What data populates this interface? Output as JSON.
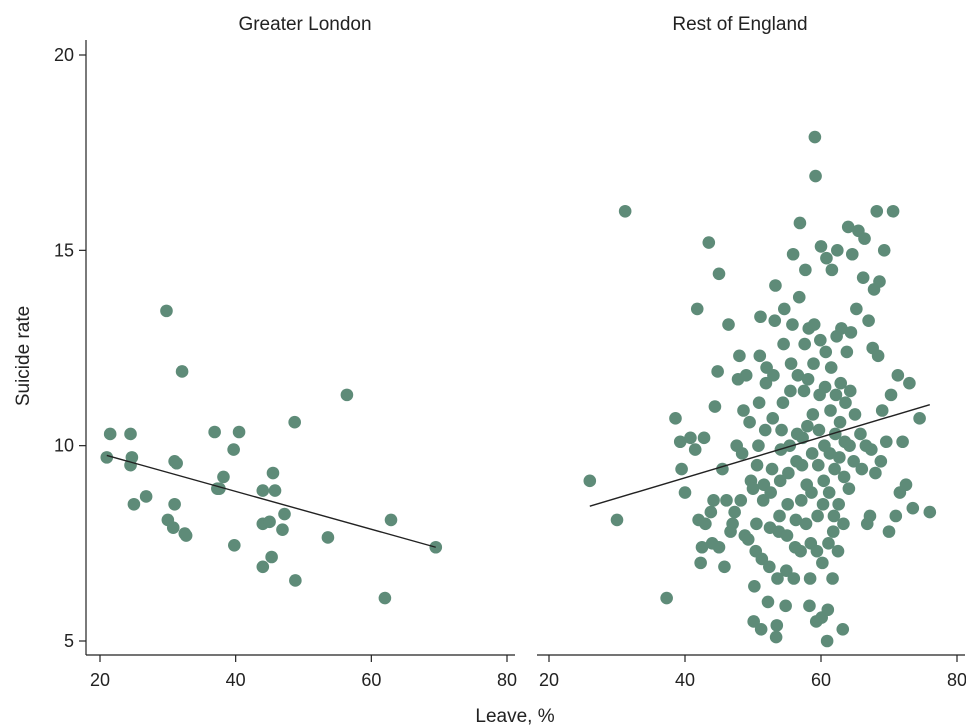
{
  "chart_data": {
    "type": "scatter",
    "xlabel": "Leave, %",
    "ylabel": "Suicide rate",
    "marker_color": "#5e8b78",
    "line_color": "#222222",
    "panels": [
      {
        "title": "Greater London",
        "xlim": [
          20,
          80
        ],
        "ylim": [
          5,
          20
        ],
        "xticks": [
          "20",
          "40",
          "60",
          "80"
        ],
        "yticks": [
          "5",
          "10",
          "15",
          "20"
        ],
        "trend": {
          "x": [
            21,
            69.5
          ],
          "y": [
            9.75,
            7.4
          ]
        },
        "points": [
          [
            21,
            9.7
          ],
          [
            21.5,
            10.3
          ],
          [
            24.5,
            10.3
          ],
          [
            24.5,
            9.5
          ],
          [
            24.7,
            9.7
          ],
          [
            25,
            8.5
          ],
          [
            26.8,
            8.7
          ],
          [
            29.8,
            13.45
          ],
          [
            30,
            8.1
          ],
          [
            30.8,
            7.9
          ],
          [
            31,
            8.5
          ],
          [
            31,
            9.6
          ],
          [
            31.3,
            9.55
          ],
          [
            32.1,
            11.9
          ],
          [
            32.5,
            7.75
          ],
          [
            32.7,
            7.7
          ],
          [
            36.9,
            10.35
          ],
          [
            37.3,
            8.9
          ],
          [
            37.6,
            8.9
          ],
          [
            38.2,
            9.2
          ],
          [
            39.7,
            9.9
          ],
          [
            39.8,
            7.45
          ],
          [
            40.5,
            10.35
          ],
          [
            44,
            6.9
          ],
          [
            44,
            8.85
          ],
          [
            44,
            8.0
          ],
          [
            45,
            8.05
          ],
          [
            45.3,
            7.15
          ],
          [
            45.5,
            9.3
          ],
          [
            45.8,
            8.85
          ],
          [
            46.9,
            7.85
          ],
          [
            47.2,
            8.25
          ],
          [
            48.7,
            10.6
          ],
          [
            48.8,
            6.55
          ],
          [
            53.6,
            7.65
          ],
          [
            56.4,
            11.3
          ],
          [
            62,
            6.1
          ],
          [
            62.9,
            8.1
          ],
          [
            69.5,
            7.4
          ]
        ]
      },
      {
        "title": "Rest of England",
        "xlim": [
          20,
          80
        ],
        "ylim": [
          5,
          20
        ],
        "xticks": [
          "20",
          "40",
          "60",
          "80"
        ],
        "yticks": [],
        "trend": {
          "x": [
            26,
            76
          ],
          "y": [
            8.45,
            11.05
          ]
        },
        "points": [
          [
            26,
            9.1
          ],
          [
            30,
            8.1
          ],
          [
            31.2,
            16.0
          ],
          [
            37.3,
            6.1
          ],
          [
            38.6,
            10.7
          ],
          [
            39.3,
            10.1
          ],
          [
            39.5,
            9.4
          ],
          [
            40,
            8.8
          ],
          [
            40.8,
            10.2
          ],
          [
            41.5,
            9.9
          ],
          [
            41.8,
            13.5
          ],
          [
            42,
            8.1
          ],
          [
            42.3,
            7.0
          ],
          [
            42.5,
            7.4
          ],
          [
            42.8,
            10.2
          ],
          [
            43,
            8.0
          ],
          [
            43.5,
            15.2
          ],
          [
            43.8,
            8.3
          ],
          [
            44,
            7.5
          ],
          [
            44.2,
            8.6
          ],
          [
            44.4,
            11.0
          ],
          [
            44.8,
            11.9
          ],
          [
            45,
            14.4
          ],
          [
            45,
            7.4
          ],
          [
            45.5,
            9.4
          ],
          [
            45.8,
            6.9
          ],
          [
            46.1,
            8.6
          ],
          [
            46.4,
            13.1
          ],
          [
            46.7,
            7.8
          ],
          [
            47,
            8.0
          ],
          [
            47.3,
            8.3
          ],
          [
            47.6,
            10.0
          ],
          [
            47.8,
            11.7
          ],
          [
            48,
            12.3
          ],
          [
            48.2,
            8.6
          ],
          [
            48.4,
            9.8
          ],
          [
            48.6,
            10.9
          ],
          [
            48.8,
            7.7
          ],
          [
            49,
            11.8
          ],
          [
            49.3,
            7.6
          ],
          [
            49.5,
            10.6
          ],
          [
            49.7,
            9.1
          ],
          [
            50,
            8.9
          ],
          [
            50.1,
            5.5
          ],
          [
            50.2,
            6.4
          ],
          [
            50.4,
            7.3
          ],
          [
            50.5,
            8.0
          ],
          [
            50.6,
            9.5
          ],
          [
            50.8,
            10.0
          ],
          [
            50.9,
            11.1
          ],
          [
            51,
            12.3
          ],
          [
            51.1,
            13.3
          ],
          [
            51.2,
            5.3
          ],
          [
            51.3,
            7.1
          ],
          [
            51.5,
            8.6
          ],
          [
            51.6,
            9.0
          ],
          [
            51.8,
            10.4
          ],
          [
            51.9,
            11.6
          ],
          [
            52,
            12.0
          ],
          [
            52.2,
            6.0
          ],
          [
            52.4,
            6.9
          ],
          [
            52.5,
            7.9
          ],
          [
            52.6,
            8.8
          ],
          [
            52.8,
            9.4
          ],
          [
            52.9,
            10.7
          ],
          [
            53,
            11.8
          ],
          [
            53.2,
            13.2
          ],
          [
            53.3,
            14.1
          ],
          [
            53.4,
            5.1
          ],
          [
            53.5,
            5.4
          ],
          [
            53.6,
            6.6
          ],
          [
            53.8,
            7.8
          ],
          [
            53.9,
            8.2
          ],
          [
            54,
            9.1
          ],
          [
            54.1,
            9.9
          ],
          [
            54.2,
            10.4
          ],
          [
            54.4,
            11.1
          ],
          [
            54.5,
            12.6
          ],
          [
            54.6,
            13.5
          ],
          [
            54.8,
            5.9
          ],
          [
            54.9,
            6.8
          ],
          [
            55,
            7.7
          ],
          [
            55.1,
            8.5
          ],
          [
            55.2,
            9.3
          ],
          [
            55.4,
            10.0
          ],
          [
            55.5,
            11.4
          ],
          [
            55.6,
            12.1
          ],
          [
            55.8,
            13.1
          ],
          [
            55.9,
            14.9
          ],
          [
            56,
            6.6
          ],
          [
            56.2,
            7.4
          ],
          [
            56.3,
            8.1
          ],
          [
            56.4,
            9.6
          ],
          [
            56.5,
            10.3
          ],
          [
            56.6,
            11.8
          ],
          [
            56.8,
            13.8
          ],
          [
            56.9,
            15.7
          ],
          [
            57,
            7.3
          ],
          [
            57.1,
            8.6
          ],
          [
            57.2,
            9.5
          ],
          [
            57.3,
            10.2
          ],
          [
            57.5,
            11.4
          ],
          [
            57.6,
            12.6
          ],
          [
            57.7,
            14.5
          ],
          [
            57.8,
            8.0
          ],
          [
            57.9,
            9.0
          ],
          [
            58,
            10.5
          ],
          [
            58.1,
            11.7
          ],
          [
            58.2,
            13.0
          ],
          [
            58.3,
            5.9
          ],
          [
            58.4,
            6.6
          ],
          [
            58.5,
            7.5
          ],
          [
            58.6,
            8.8
          ],
          [
            58.7,
            9.8
          ],
          [
            58.8,
            10.8
          ],
          [
            58.9,
            12.1
          ],
          [
            59,
            13.1
          ],
          [
            59.1,
            17.9
          ],
          [
            59.2,
            16.9
          ],
          [
            59.3,
            5.5
          ],
          [
            59.4,
            7.3
          ],
          [
            59.5,
            8.2
          ],
          [
            59.6,
            9.5
          ],
          [
            59.7,
            10.4
          ],
          [
            59.8,
            11.3
          ],
          [
            59.9,
            12.7
          ],
          [
            60,
            15.1
          ],
          [
            60.1,
            5.6
          ],
          [
            60.2,
            7.0
          ],
          [
            60.3,
            8.5
          ],
          [
            60.4,
            9.1
          ],
          [
            60.5,
            10.0
          ],
          [
            60.6,
            11.5
          ],
          [
            60.7,
            12.4
          ],
          [
            60.8,
            14.8
          ],
          [
            60.9,
            5.0
          ],
          [
            61,
            5.8
          ],
          [
            61.1,
            7.5
          ],
          [
            61.2,
            8.8
          ],
          [
            61.3,
            9.8
          ],
          [
            61.4,
            10.9
          ],
          [
            61.5,
            12.0
          ],
          [
            61.6,
            14.5
          ],
          [
            61.7,
            6.6
          ],
          [
            61.8,
            7.8
          ],
          [
            61.9,
            8.2
          ],
          [
            62,
            9.4
          ],
          [
            62.1,
            10.3
          ],
          [
            62.2,
            11.3
          ],
          [
            62.3,
            12.8
          ],
          [
            62.4,
            15.0
          ],
          [
            62.5,
            7.3
          ],
          [
            62.6,
            8.5
          ],
          [
            62.7,
            9.7
          ],
          [
            62.8,
            10.6
          ],
          [
            62.9,
            11.6
          ],
          [
            63,
            13.0
          ],
          [
            63.2,
            5.3
          ],
          [
            63.3,
            8.0
          ],
          [
            63.4,
            9.2
          ],
          [
            63.5,
            10.1
          ],
          [
            63.6,
            11.1
          ],
          [
            63.8,
            12.4
          ],
          [
            64,
            15.6
          ],
          [
            64.1,
            8.9
          ],
          [
            64.2,
            10.0
          ],
          [
            64.3,
            11.4
          ],
          [
            64.4,
            12.9
          ],
          [
            64.6,
            14.9
          ],
          [
            64.8,
            9.6
          ],
          [
            65,
            10.8
          ],
          [
            65.2,
            13.5
          ],
          [
            65.5,
            15.5
          ],
          [
            65.8,
            10.3
          ],
          [
            66,
            9.4
          ],
          [
            66.2,
            14.3
          ],
          [
            66.4,
            15.3
          ],
          [
            66.6,
            10.0
          ],
          [
            66.8,
            8.0
          ],
          [
            67,
            13.2
          ],
          [
            67.2,
            8.2
          ],
          [
            67.4,
            9.9
          ],
          [
            67.6,
            12.5
          ],
          [
            67.8,
            14.0
          ],
          [
            68,
            9.3
          ],
          [
            68.2,
            16.0
          ],
          [
            68.4,
            12.3
          ],
          [
            68.6,
            14.2
          ],
          [
            68.8,
            9.6
          ],
          [
            69,
            10.9
          ],
          [
            69.3,
            15.0
          ],
          [
            69.6,
            10.1
          ],
          [
            70,
            7.8
          ],
          [
            70.3,
            11.3
          ],
          [
            70.6,
            16.0
          ],
          [
            71,
            8.2
          ],
          [
            71.3,
            11.8
          ],
          [
            71.6,
            8.8
          ],
          [
            72,
            10.1
          ],
          [
            72.5,
            9.0
          ],
          [
            73,
            11.6
          ],
          [
            73.5,
            8.4
          ],
          [
            74.5,
            10.7
          ],
          [
            76,
            8.3
          ]
        ]
      }
    ]
  }
}
